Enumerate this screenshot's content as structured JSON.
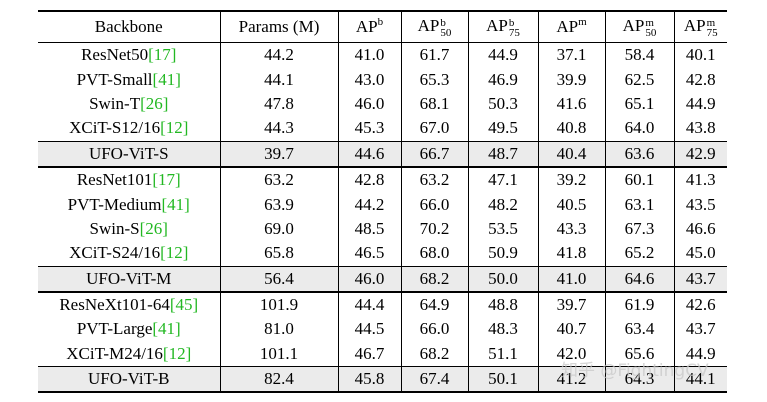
{
  "header": {
    "backbone": "Backbone",
    "params": "Params (M)",
    "ap": "AP",
    "sup_b": "b",
    "sup_m": "m",
    "sub_50": "50",
    "sub_75": "75"
  },
  "rows": [
    {
      "name": "ResNet50",
      "cite": "[17]",
      "params": "44.2",
      "apb": "41.0",
      "apb50": "61.7",
      "apb75": "44.9",
      "apm": "37.1",
      "apm50": "58.4",
      "apm75": "40.1"
    },
    {
      "name": "PVT-Small",
      "cite": "[41]",
      "params": "44.1",
      "apb": "43.0",
      "apb50": "65.3",
      "apb75": "46.9",
      "apm": "39.9",
      "apm50": "62.5",
      "apm75": "42.8"
    },
    {
      "name": "Swin-T",
      "cite": "[26]",
      "params": "47.8",
      "apb": "46.0",
      "apb50": "68.1",
      "apb75": "50.3",
      "apm": "41.6",
      "apm50": "65.1",
      "apm75": "44.9"
    },
    {
      "name": "XCiT-S12/16",
      "cite": "[12]",
      "params": "44.3",
      "apb": "45.3",
      "apb50": "67.0",
      "apb75": "49.5",
      "apm": "40.8",
      "apm50": "64.0",
      "apm75": "43.8"
    },
    {
      "name": "UFO-ViT-S",
      "cite": "",
      "params": "39.7",
      "apb": "44.6",
      "apb50": "66.7",
      "apb75": "48.7",
      "apm": "40.4",
      "apm50": "63.6",
      "apm75": "42.9"
    },
    {
      "name": "ResNet101",
      "cite": "[17]",
      "params": "63.2",
      "apb": "42.8",
      "apb50": "63.2",
      "apb75": "47.1",
      "apm": "39.2",
      "apm50": "60.1",
      "apm75": "41.3"
    },
    {
      "name": "PVT-Medium",
      "cite": "[41]",
      "params": "63.9",
      "apb": "44.2",
      "apb50": "66.0",
      "apb75": "48.2",
      "apm": "40.5",
      "apm50": "63.1",
      "apm75": "43.5"
    },
    {
      "name": "Swin-S",
      "cite": "[26]",
      "params": "69.0",
      "apb": "48.5",
      "apb50": "70.2",
      "apb75": "53.5",
      "apm": "43.3",
      "apm50": "67.3",
      "apm75": "46.6"
    },
    {
      "name": "XCiT-S24/16",
      "cite": "[12]",
      "params": "65.8",
      "apb": "46.5",
      "apb50": "68.0",
      "apb75": "50.9",
      "apm": "41.8",
      "apm50": "65.2",
      "apm75": "45.0"
    },
    {
      "name": "UFO-ViT-M",
      "cite": "",
      "params": "56.4",
      "apb": "46.0",
      "apb50": "68.2",
      "apb75": "50.0",
      "apm": "41.0",
      "apm50": "64.6",
      "apm75": "43.7"
    },
    {
      "name": "ResNeXt101-64",
      "cite": "[45]",
      "params": "101.9",
      "apb": "44.4",
      "apb50": "64.9",
      "apb75": "48.8",
      "apm": "39.7",
      "apm50": "61.9",
      "apm75": "42.6"
    },
    {
      "name": "PVT-Large",
      "cite": "[41]",
      "params": "81.0",
      "apb": "44.5",
      "apb50": "66.0",
      "apb75": "48.3",
      "apm": "40.7",
      "apm50": "63.4",
      "apm75": "43.7"
    },
    {
      "name": "XCiT-M24/16",
      "cite": "[12]",
      "params": "101.1",
      "apb": "46.7",
      "apb50": "68.2",
      "apb75": "51.1",
      "apm": "42.0",
      "apm50": "65.6",
      "apm75": "44.9"
    },
    {
      "name": "UFO-ViT-B",
      "cite": "",
      "params": "82.4",
      "apb": "45.8",
      "apb50": "67.4",
      "apb75": "50.1",
      "apm": "41.2",
      "apm50": "64.3",
      "apm75": "44.1"
    }
  ],
  "watermark": "知乎 @FightingCV",
  "colors": {
    "citation": "#22b822",
    "highlight_row": "#ebebeb"
  }
}
